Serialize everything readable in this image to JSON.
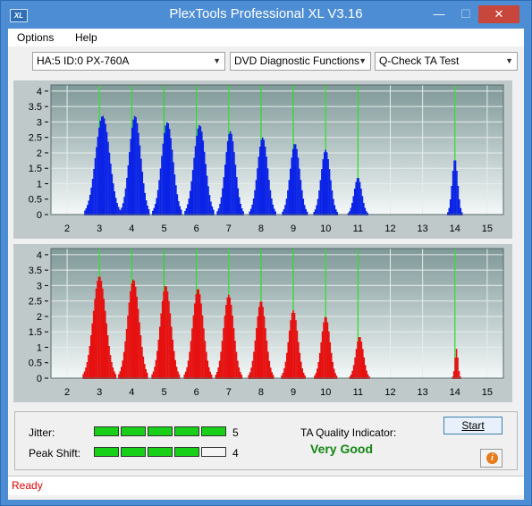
{
  "window": {
    "title": "PlexTools Professional XL V3.16",
    "app_icon": "XL"
  },
  "window_controls": {
    "minimize": "—",
    "maximize": "☐",
    "close": "✕"
  },
  "menu": {
    "items": [
      {
        "label": "Options"
      },
      {
        "label": "Help"
      }
    ]
  },
  "toolbar": {
    "drive": "HA:5 ID:0  PX-760A",
    "function": "DVD Diagnostic Functions",
    "test": "Q-Check TA Test"
  },
  "chart_data": [
    {
      "type": "bar",
      "name": "blue",
      "color": "#0a23e6",
      "x_ticks": [
        "2",
        "3",
        "4",
        "5",
        "6",
        "7",
        "8",
        "9",
        "10",
        "11",
        "12",
        "13",
        "14",
        "15"
      ],
      "y_ticks": [
        "0",
        "0.5",
        "1",
        "1.5",
        "2",
        "2.5",
        "3",
        "3.5",
        "4"
      ],
      "xlim": [
        1.5,
        15.5
      ],
      "ylim": [
        0,
        4.2
      ],
      "green_markers": [
        3,
        4,
        5,
        6,
        7,
        8,
        9,
        10,
        11,
        14
      ],
      "peaks": [
        {
          "x": 3.1,
          "h": 3.2,
          "w": 0.55
        },
        {
          "x": 4.1,
          "h": 3.2,
          "w": 0.45
        },
        {
          "x": 5.1,
          "h": 3.0,
          "w": 0.45
        },
        {
          "x": 6.1,
          "h": 2.9,
          "w": 0.45
        },
        {
          "x": 7.05,
          "h": 2.7,
          "w": 0.4
        },
        {
          "x": 8.05,
          "h": 2.5,
          "w": 0.4
        },
        {
          "x": 9.05,
          "h": 2.3,
          "w": 0.38
        },
        {
          "x": 10.0,
          "h": 2.1,
          "w": 0.36
        },
        {
          "x": 11.0,
          "h": 1.2,
          "w": 0.3
        },
        {
          "x": 14.0,
          "h": 1.8,
          "w": 0.22
        }
      ]
    },
    {
      "type": "bar",
      "name": "red",
      "color": "#e61010",
      "x_ticks": [
        "2",
        "3",
        "4",
        "5",
        "6",
        "7",
        "8",
        "9",
        "10",
        "11",
        "12",
        "13",
        "14",
        "15"
      ],
      "y_ticks": [
        "0",
        "0.5",
        "1",
        "1.5",
        "2",
        "2.5",
        "3",
        "3.5",
        "4"
      ],
      "xlim": [
        1.5,
        15.5
      ],
      "ylim": [
        0,
        4.2
      ],
      "green_markers": [
        3,
        4,
        5,
        6,
        7,
        8,
        9,
        10,
        11,
        14
      ],
      "peaks": [
        {
          "x": 3.0,
          "h": 3.3,
          "w": 0.5
        },
        {
          "x": 4.05,
          "h": 3.2,
          "w": 0.45
        },
        {
          "x": 5.05,
          "h": 3.0,
          "w": 0.42
        },
        {
          "x": 6.05,
          "h": 2.9,
          "w": 0.42
        },
        {
          "x": 7.0,
          "h": 2.7,
          "w": 0.4
        },
        {
          "x": 8.0,
          "h": 2.5,
          "w": 0.38
        },
        {
          "x": 9.0,
          "h": 2.2,
          "w": 0.36
        },
        {
          "x": 10.0,
          "h": 2.0,
          "w": 0.34
        },
        {
          "x": 11.05,
          "h": 1.35,
          "w": 0.3
        },
        {
          "x": 14.05,
          "h": 0.95,
          "w": 0.12
        }
      ]
    }
  ],
  "results": {
    "jitter_label": "Jitter:",
    "jitter_value": "5",
    "jitter_level": 5,
    "peak_shift_label": "Peak Shift:",
    "peak_shift_value": "4",
    "peak_shift_level": 4,
    "meter_segments": 5,
    "ta_label": "TA Quality Indicator:",
    "ta_value": "Very Good"
  },
  "buttons": {
    "start": "Start",
    "info_icon": "info-icon"
  },
  "status": {
    "text": "Ready"
  }
}
